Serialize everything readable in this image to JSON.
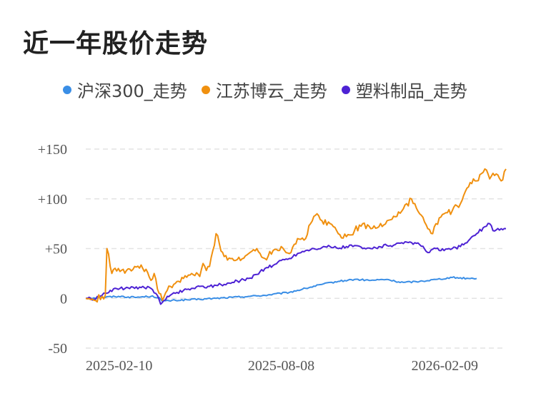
{
  "chart_data": {
    "type": "line",
    "title": "近一年股价走势",
    "xlabel": "",
    "ylabel": "",
    "ylim": [
      -50,
      150
    ],
    "yticks": [
      {
        "value": 150,
        "label": "+150"
      },
      {
        "value": 100,
        "label": "+100"
      },
      {
        "value": 50,
        "label": "+50"
      },
      {
        "value": 0,
        "label": "0"
      },
      {
        "value": -50,
        "label": "-50"
      }
    ],
    "xticks": [
      {
        "index": 0,
        "label": "2025-02-10"
      },
      {
        "index": 120,
        "label": "2025-08-08"
      },
      {
        "index": 240,
        "label": "2026-02-09"
      }
    ],
    "grid": true,
    "legend_position": "top",
    "series": [
      {
        "name": "沪深300_走势",
        "color": "#3a8ee6",
        "anchors": [
          [
            0,
            0
          ],
          [
            10,
            1
          ],
          [
            20,
            2
          ],
          [
            30,
            1
          ],
          [
            40,
            2
          ],
          [
            45,
            1
          ],
          [
            47,
            -3
          ],
          [
            55,
            -2
          ],
          [
            70,
            -1
          ],
          [
            80,
            0
          ],
          [
            90,
            1
          ],
          [
            100,
            2
          ],
          [
            110,
            3
          ],
          [
            125,
            6
          ],
          [
            135,
            10
          ],
          [
            145,
            14
          ],
          [
            155,
            17
          ],
          [
            165,
            19
          ],
          [
            175,
            18
          ],
          [
            185,
            19
          ],
          [
            190,
            17
          ],
          [
            195,
            16
          ],
          [
            205,
            17
          ],
          [
            215,
            19
          ],
          [
            225,
            21
          ],
          [
            235,
            20
          ],
          [
            240,
            20
          ]
        ]
      },
      {
        "name": "江苏博云_走势",
        "color": "#f0900f",
        "anchors": [
          [
            0,
            0
          ],
          [
            5,
            -2
          ],
          [
            10,
            2
          ],
          [
            12,
            3
          ],
          [
            13,
            50
          ],
          [
            16,
            25
          ],
          [
            20,
            30
          ],
          [
            25,
            28
          ],
          [
            30,
            32
          ],
          [
            35,
            30
          ],
          [
            38,
            26
          ],
          [
            40,
            18
          ],
          [
            42,
            25
          ],
          [
            45,
            5
          ],
          [
            47,
            -2
          ],
          [
            50,
            8
          ],
          [
            55,
            15
          ],
          [
            60,
            20
          ],
          [
            65,
            25
          ],
          [
            70,
            22
          ],
          [
            72,
            35
          ],
          [
            74,
            28
          ],
          [
            76,
            32
          ],
          [
            78,
            48
          ],
          [
            80,
            65
          ],
          [
            82,
            55
          ],
          [
            85,
            42
          ],
          [
            90,
            40
          ],
          [
            95,
            38
          ],
          [
            100,
            45
          ],
          [
            105,
            50
          ],
          [
            110,
            40
          ],
          [
            115,
            48
          ],
          [
            120,
            52
          ],
          [
            125,
            45
          ],
          [
            130,
            60
          ],
          [
            135,
            60
          ],
          [
            138,
            75
          ],
          [
            142,
            85
          ],
          [
            145,
            78
          ],
          [
            150,
            75
          ],
          [
            155,
            65
          ],
          [
            160,
            62
          ],
          [
            165,
            68
          ],
          [
            170,
            75
          ],
          [
            175,
            70
          ],
          [
            180,
            72
          ],
          [
            185,
            78
          ],
          [
            190,
            82
          ],
          [
            195,
            90
          ],
          [
            200,
            100
          ],
          [
            205,
            85
          ],
          [
            210,
            70
          ],
          [
            213,
            65
          ],
          [
            215,
            75
          ],
          [
            220,
            85
          ],
          [
            225,
            88
          ],
          [
            230,
            95
          ],
          [
            235,
            112
          ],
          [
            238,
            120
          ],
          [
            240,
            118
          ],
          [
            245,
            130
          ],
          [
            248,
            120
          ],
          [
            252,
            125
          ],
          [
            255,
            118
          ],
          [
            258,
            130
          ]
        ]
      },
      {
        "name": "塑料制品_走势",
        "color": "#4d22d4",
        "anchors": [
          [
            0,
            0
          ],
          [
            5,
            -1
          ],
          [
            10,
            3
          ],
          [
            15,
            8
          ],
          [
            20,
            9
          ],
          [
            25,
            11
          ],
          [
            30,
            10
          ],
          [
            35,
            12
          ],
          [
            40,
            10
          ],
          [
            43,
            5
          ],
          [
            46,
            -6
          ],
          [
            50,
            2
          ],
          [
            55,
            5
          ],
          [
            60,
            8
          ],
          [
            65,
            10
          ],
          [
            70,
            12
          ],
          [
            75,
            12
          ],
          [
            80,
            13
          ],
          [
            85,
            14
          ],
          [
            90,
            16
          ],
          [
            95,
            18
          ],
          [
            100,
            20
          ],
          [
            105,
            24
          ],
          [
            110,
            30
          ],
          [
            115,
            33
          ],
          [
            120,
            38
          ],
          [
            125,
            40
          ],
          [
            130,
            45
          ],
          [
            135,
            48
          ],
          [
            140,
            50
          ],
          [
            145,
            51
          ],
          [
            150,
            52
          ],
          [
            155,
            50
          ],
          [
            160,
            52
          ],
          [
            165,
            53
          ],
          [
            170,
            50
          ],
          [
            175,
            50
          ],
          [
            180,
            52
          ],
          [
            185,
            53
          ],
          [
            190,
            54
          ],
          [
            195,
            55
          ],
          [
            200,
            56
          ],
          [
            205,
            54
          ],
          [
            210,
            46
          ],
          [
            215,
            50
          ],
          [
            220,
            48
          ],
          [
            225,
            50
          ],
          [
            230,
            52
          ],
          [
            235,
            58
          ],
          [
            240,
            65
          ],
          [
            245,
            72
          ],
          [
            248,
            75
          ],
          [
            250,
            68
          ],
          [
            255,
            70
          ],
          [
            258,
            70
          ]
        ]
      }
    ]
  }
}
